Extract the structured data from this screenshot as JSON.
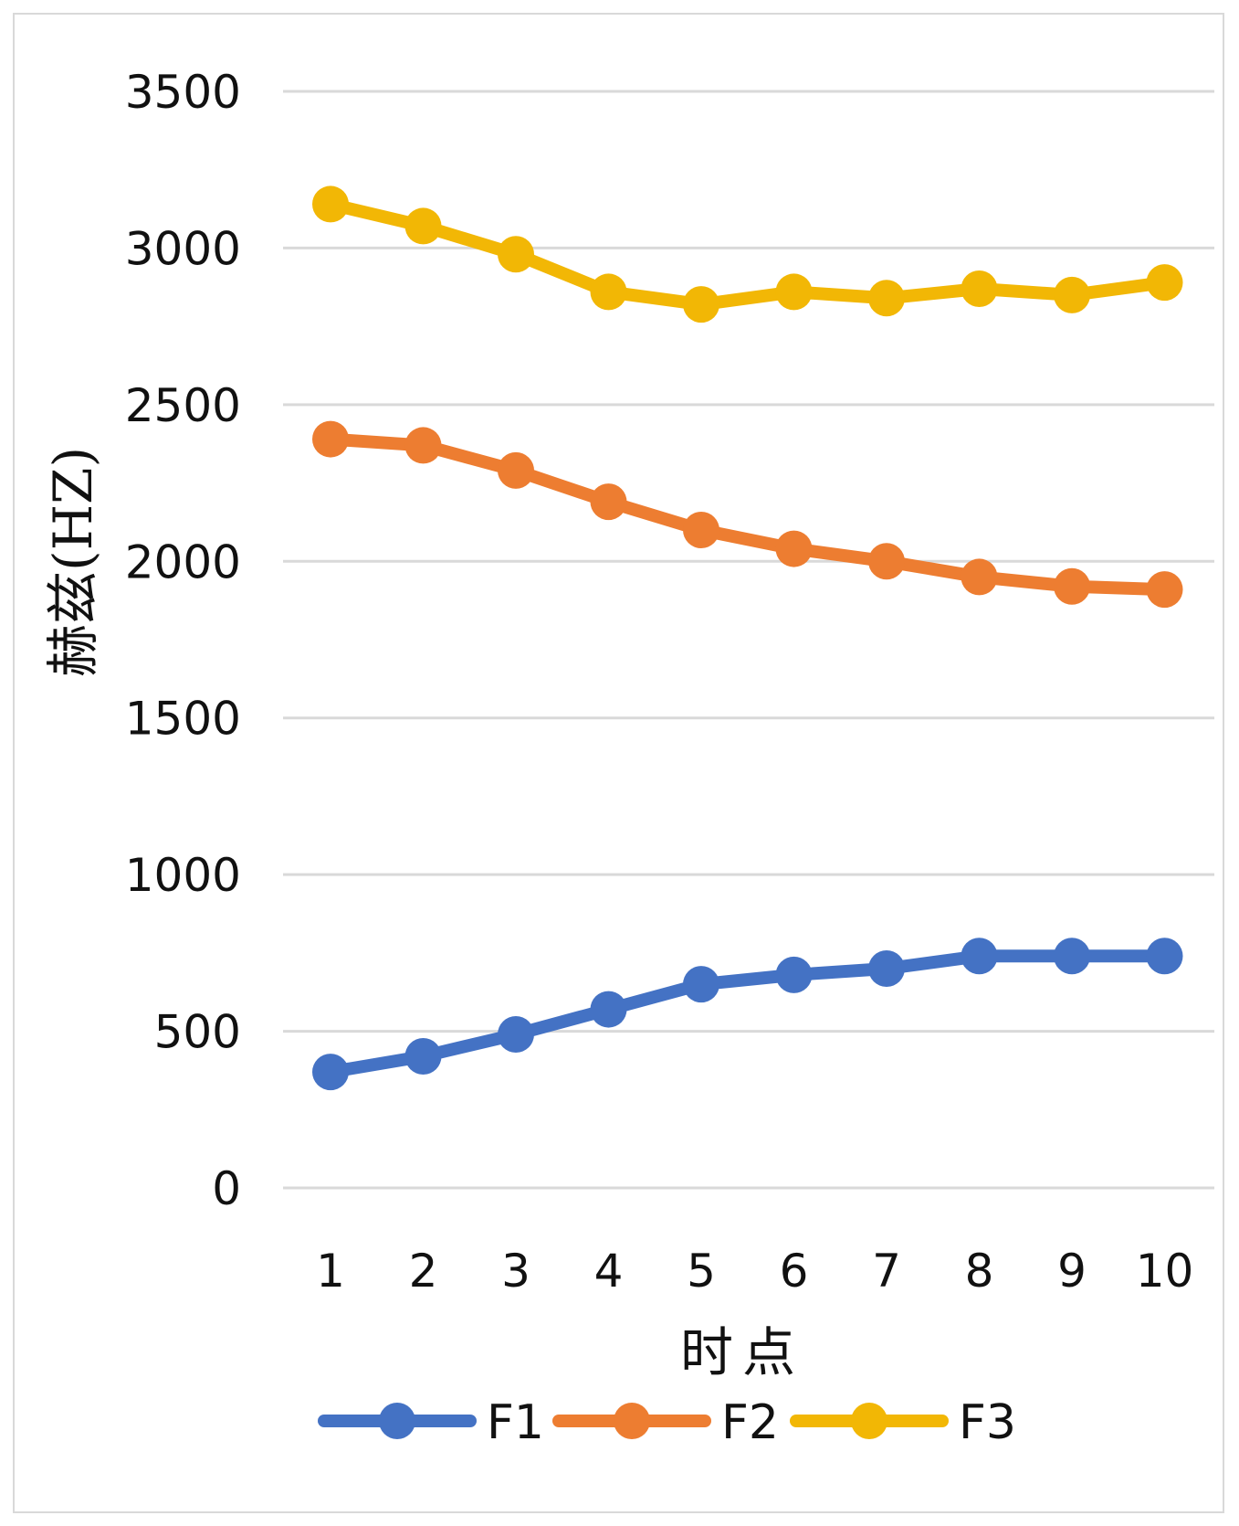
{
  "chart_data": {
    "type": "line",
    "title": "",
    "xlabel": "时点",
    "ylabel": "赫兹(HZ)",
    "x": [
      1,
      2,
      3,
      4,
      5,
      6,
      7,
      8,
      9,
      10
    ],
    "x_tick_labels": [
      "1",
      "2",
      "3",
      "4",
      "5",
      "6",
      "7",
      "8",
      "9",
      "10"
    ],
    "y_tick_labels": [
      "0",
      "500",
      "1000",
      "1500",
      "2000",
      "2500",
      "3000",
      "3500"
    ],
    "ylim": [
      0,
      3500
    ],
    "y_ticks": [
      0,
      500,
      1000,
      1500,
      2000,
      2500,
      3000,
      3500
    ],
    "grid": true,
    "legend_position": "bottom",
    "series": [
      {
        "name": "F1",
        "color": "#4472C4",
        "values": [
          370,
          420,
          490,
          570,
          650,
          680,
          700,
          740,
          740,
          740
        ]
      },
      {
        "name": "F2",
        "color": "#ED7D31",
        "values": [
          2390,
          2370,
          2290,
          2190,
          2100,
          2040,
          2000,
          1950,
          1920,
          1910
        ]
      },
      {
        "name": "F3",
        "color": "#F2B705",
        "values": [
          3140,
          3070,
          2980,
          2860,
          2820,
          2860,
          2840,
          2870,
          2850,
          2890
        ]
      }
    ]
  }
}
